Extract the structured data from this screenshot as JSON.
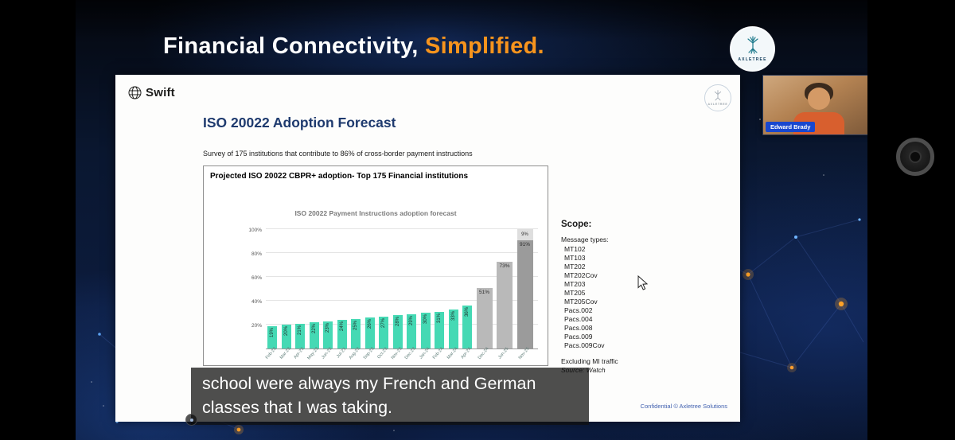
{
  "header": {
    "title": "Financial Connectivity,",
    "title_accent": "Simplified.",
    "accent_color": "#f7941d"
  },
  "brand": {
    "name": "AXLETREE"
  },
  "webcam": {
    "participant_name": "Edward Brady"
  },
  "captions": {
    "lines": [
      "school were always my French and German",
      "classes that I was taking."
    ]
  },
  "slide": {
    "logo_text": "Swift",
    "title": "ISO 20022 Adoption Forecast",
    "subtitle": "Survey of 175 institutions that contribute to 86% of cross-border payment instructions",
    "box_title": "Projected ISO 20022 CBPR+ adoption- Top 175 Financial institutions",
    "scope": {
      "heading": "Scope:",
      "message_types_label": "Message types:",
      "message_types": [
        "MT102",
        "MT103",
        "MT202",
        "MT202Cov",
        "MT203",
        "MT205",
        "MT205Cov",
        "Pacs.002",
        "Pacs.004",
        "Pacs.008",
        "Pacs.009",
        "Pacs.009Cov"
      ],
      "note1": "Excluding MI traffic",
      "note2": "Source: Watch"
    },
    "footer": "Confidential © Axletree Solutions"
  },
  "chart_data": {
    "type": "bar",
    "title": "ISO 20022 Payment Instructions adoption forecast",
    "xlabel": "",
    "ylabel": "",
    "ylim": [
      0,
      100
    ],
    "ytick_values": [
      20,
      40,
      60,
      80,
      100
    ],
    "grid": true,
    "legend": "none",
    "colors": {
      "actual": "#45d9b4",
      "forecast": "#b9b9b9",
      "forecast_final": "#9b9b9b",
      "forecast_top": "#dedede"
    },
    "bars": [
      {
        "label": "Feb-23",
        "value": 19,
        "series": "actual"
      },
      {
        "label": "Mar-23",
        "value": 20,
        "series": "actual"
      },
      {
        "label": "Apr-23",
        "value": 21,
        "series": "actual"
      },
      {
        "label": "May-23",
        "value": 22,
        "series": "actual"
      },
      {
        "label": "Jun-23",
        "value": 23,
        "series": "actual"
      },
      {
        "label": "Jul-23",
        "value": 24,
        "series": "actual"
      },
      {
        "label": "Aug-23",
        "value": 25,
        "series": "actual"
      },
      {
        "label": "Sep-23",
        "value": 26,
        "series": "actual"
      },
      {
        "label": "Oct-23",
        "value": 27,
        "series": "actual"
      },
      {
        "label": "Nov-23",
        "value": 28,
        "series": "actual"
      },
      {
        "label": "Dec-23",
        "value": 29,
        "series": "actual"
      },
      {
        "label": "Jan-24",
        "value": 30,
        "series": "actual"
      },
      {
        "label": "Feb-24",
        "value": 31,
        "series": "actual"
      },
      {
        "label": "Mar-24",
        "value": 33,
        "series": "actual"
      },
      {
        "label": "Apr-24",
        "value": 36,
        "series": "actual"
      },
      {
        "label": "Dec-24",
        "value": 51,
        "series": "forecast"
      },
      {
        "label": "Jun-25",
        "value": 73,
        "series": "forecast"
      },
      {
        "label": "Nov-25",
        "value": 91,
        "top_value": 9,
        "series": "forecast"
      }
    ]
  }
}
